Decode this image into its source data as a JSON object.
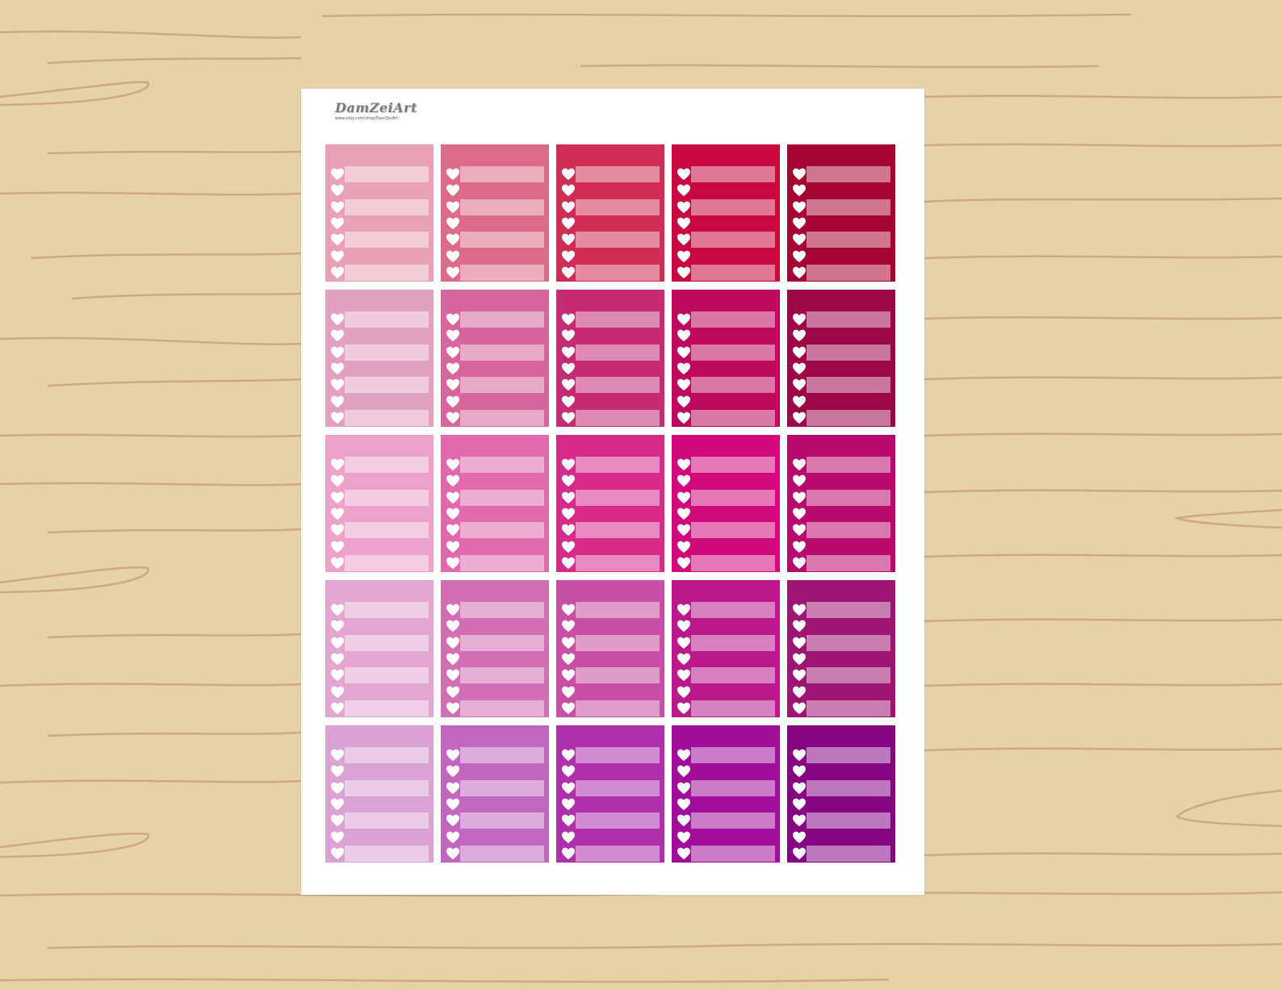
{
  "logo": {
    "title": "DamZeiArt",
    "url": "www.etsy.com/shop/DamZeiArt"
  },
  "sticker_sheet": {
    "rows_per_sticker": 7,
    "row_icon": "heart-icon",
    "colors": [
      [
        "#e9a2b5",
        "#dc6a88",
        "#cf2c56",
        "#c7093f",
        "#a50631"
      ],
      [
        "#e3a1c1",
        "#d6659b",
        "#c42b73",
        "#bd085d",
        "#9c0748"
      ],
      [
        "#eda2cc",
        "#e06aac",
        "#d62b8b",
        "#d00a7a",
        "#b80a6d"
      ],
      [
        "#e3a6d0",
        "#d26fb4",
        "#c64ea3",
        "#b9198a",
        "#9d1574"
      ],
      [
        "#dba2d6",
        "#c266c0",
        "#b02fab",
        "#a10d9b",
        "#860682"
      ]
    ]
  }
}
